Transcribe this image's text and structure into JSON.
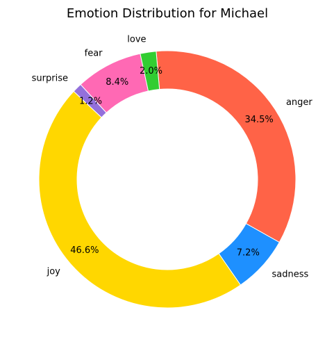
{
  "chart_data": {
    "type": "pie",
    "style": "donut",
    "title": "Emotion Distribution for Michael",
    "slices": [
      {
        "label": "anger",
        "value": 34.5,
        "value_label": "34.5%",
        "color": "#FF6347"
      },
      {
        "label": "sadness",
        "value": 7.2,
        "value_label": "7.2%",
        "color": "#1E90FF"
      },
      {
        "label": "joy",
        "value": 46.6,
        "value_label": "46.6%",
        "color": "#FFD700"
      },
      {
        "label": "surprise",
        "value": 1.2,
        "value_label": "1.2%",
        "color": "#9370DB"
      },
      {
        "label": "fear",
        "value": 8.4,
        "value_label": "8.4%",
        "color": "#FF69B4"
      },
      {
        "label": "love",
        "value": 2.0,
        "value_label": "2.0%",
        "color": "#32CD32"
      }
    ]
  }
}
